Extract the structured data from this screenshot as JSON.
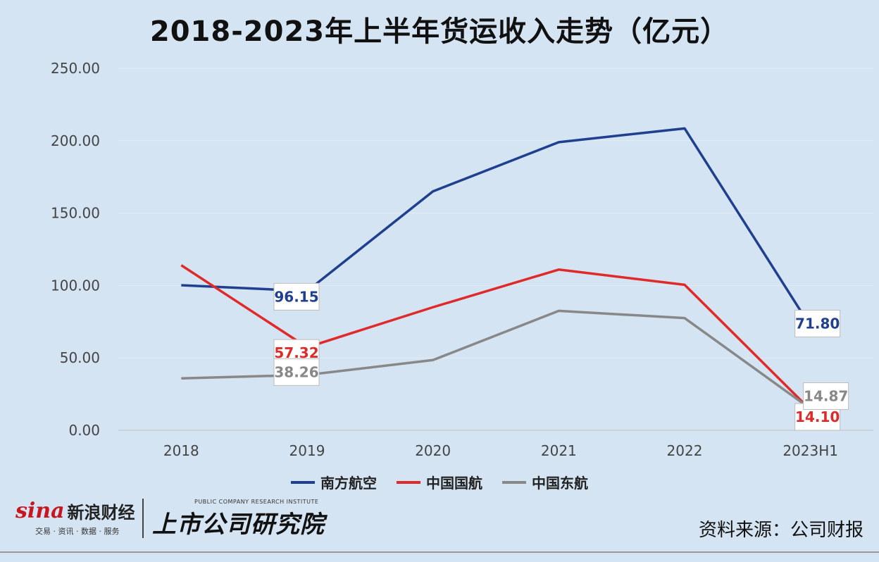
{
  "title": "2018-2023年上半年货运收入走势（亿元）",
  "chart_data": {
    "type": "line",
    "categories": [
      "2018",
      "2019",
      "2020",
      "2021",
      "2022",
      "2023H1"
    ],
    "y_ticks": [
      "250.00",
      "200.00",
      "150.00",
      "100.00",
      "50.00",
      "0.00"
    ],
    "ylim": [
      0,
      250
    ],
    "grid": true,
    "legend_position": "bottom",
    "series": [
      {
        "name": "南方航空",
        "color": "#1f3f8f",
        "values": [
          100.2,
          96.15,
          165.0,
          199.0,
          208.5,
          71.8
        ],
        "labels": [
          {
            "index": 1,
            "text": "96.15"
          },
          {
            "index": 5,
            "text": "71.80"
          }
        ]
      },
      {
        "name": "中国国航",
        "color": "#e02a2a",
        "values": [
          114.0,
          57.32,
          85.0,
          111.0,
          100.5,
          14.1
        ],
        "labels": [
          {
            "index": 1,
            "text": "57.32"
          },
          {
            "index": 5,
            "text": "14.10"
          }
        ]
      },
      {
        "name": "中国东航",
        "color": "#888888",
        "values": [
          35.9,
          38.26,
          48.5,
          82.5,
          77.5,
          14.87
        ],
        "labels": [
          {
            "index": 1,
            "text": "38.26"
          },
          {
            "index": 5,
            "text": "14.87"
          }
        ]
      }
    ]
  },
  "footer": {
    "sina_mark": "sina",
    "sina_text": "新浪财经",
    "sina_sub": "交易 · 资讯 · 数据 · 服务",
    "institute_en": "PUBLIC COMPANY RESEARCH INSTITUTE",
    "institute_cn": "上市公司研究院",
    "source": "资料来源：公司财报"
  }
}
